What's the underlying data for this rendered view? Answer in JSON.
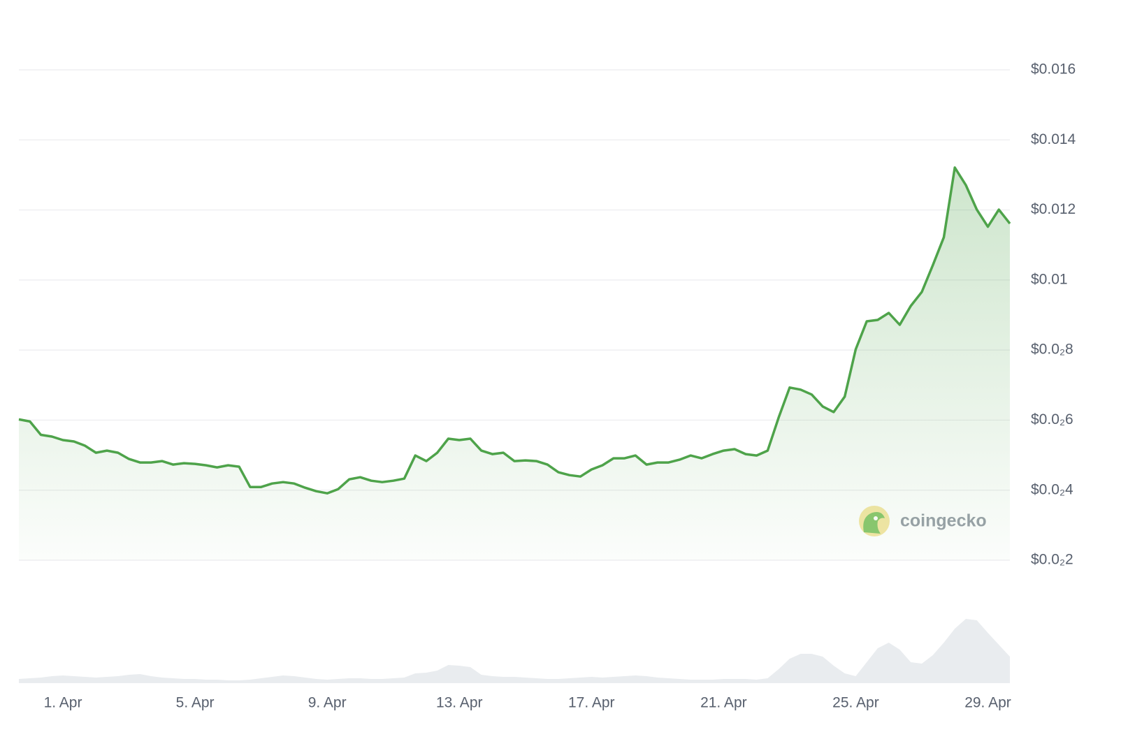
{
  "chart_data": {
    "type": "line",
    "categories": [
      null,
      null,
      null,
      null,
      "1. Apr",
      null,
      null,
      null,
      null,
      null,
      null,
      null,
      null,
      null,
      null,
      null,
      "5. Apr",
      null,
      null,
      null,
      null,
      null,
      null,
      null,
      null,
      null,
      null,
      null,
      "9. Apr",
      null,
      null,
      null,
      null,
      null,
      null,
      null,
      null,
      null,
      null,
      null,
      "13. Apr",
      null,
      null,
      null,
      null,
      null,
      null,
      null,
      null,
      null,
      null,
      null,
      "17. Apr",
      null,
      null,
      null,
      null,
      null,
      null,
      null,
      null,
      null,
      null,
      null,
      "21. Apr",
      null,
      null,
      null,
      null,
      null,
      null,
      null,
      null,
      null,
      null,
      null,
      "25. Apr",
      null,
      null,
      null,
      null,
      null,
      null,
      null,
      null,
      null,
      null,
      null,
      "29. Apr",
      null,
      null
    ],
    "values": [
      0.00602,
      0.00596,
      0.00558,
      0.00553,
      0.00543,
      0.00539,
      0.00527,
      0.00507,
      0.00513,
      0.00507,
      0.00489,
      0.00479,
      0.00479,
      0.00483,
      0.00473,
      0.00477,
      0.00475,
      0.00471,
      0.00465,
      0.00471,
      0.00467,
      0.00409,
      0.00409,
      0.00419,
      0.00423,
      0.00419,
      0.00407,
      0.00397,
      0.00391,
      0.00403,
      0.00431,
      0.00437,
      0.00427,
      0.00423,
      0.00427,
      0.00433,
      0.00499,
      0.00483,
      0.00507,
      0.00547,
      0.00543,
      0.00547,
      0.00513,
      0.00503,
      0.00507,
      0.00483,
      0.00485,
      0.00483,
      0.00473,
      0.00451,
      0.00443,
      0.00439,
      0.00459,
      0.00471,
      0.00491,
      0.00491,
      0.00499,
      0.00473,
      0.00479,
      0.00479,
      0.00487,
      0.00499,
      0.00491,
      0.00503,
      0.00513,
      0.00517,
      0.00503,
      0.00499,
      0.00513,
      0.00607,
      0.00693,
      0.00687,
      0.00673,
      0.00639,
      0.00623,
      0.00667,
      0.00802,
      0.00882,
      0.00886,
      0.00906,
      0.00872,
      0.00926,
      0.00966,
      0.01042,
      0.01122,
      0.01321,
      0.01271,
      0.01201,
      0.01152,
      0.01201,
      0.01161
    ],
    "color": "#4ea34a",
    "ylim": [
      0.002,
      0.016
    ],
    "yticks": [
      {
        "value": 0.002,
        "label": "$0.0₂2"
      },
      {
        "value": 0.004,
        "label": "$0.0₂4"
      },
      {
        "value": 0.006,
        "label": "$0.0₂6"
      },
      {
        "value": 0.008,
        "label": "$0.0₂8"
      },
      {
        "value": 0.01,
        "label": "$0.01"
      },
      {
        "value": 0.012,
        "label": "$0.012"
      },
      {
        "value": 0.014,
        "label": "$0.014"
      },
      {
        "value": 0.016,
        "label": "$0.016"
      }
    ],
    "grid": true,
    "watermark": "coingecko",
    "volume": {
      "color": "#e9ecef",
      "ylim": [
        0,
        100
      ],
      "values": [
        6,
        7,
        8,
        10,
        11,
        10,
        9,
        8,
        9,
        10,
        12,
        13,
        10,
        8,
        7,
        6,
        6,
        5,
        5,
        4,
        4,
        5,
        7,
        9,
        11,
        10,
        8,
        6,
        5,
        6,
        7,
        7,
        6,
        6,
        7,
        8,
        14,
        15,
        18,
        26,
        25,
        23,
        12,
        10,
        9,
        9,
        8,
        7,
        6,
        6,
        7,
        8,
        9,
        8,
        9,
        10,
        11,
        10,
        8,
        7,
        6,
        5,
        5,
        5,
        6,
        6,
        6,
        5,
        7,
        20,
        35,
        42,
        42,
        38,
        25,
        14,
        10,
        30,
        50,
        58,
        48,
        30,
        28,
        40,
        58,
        78,
        92,
        90,
        72,
        55,
        38
      ]
    }
  }
}
